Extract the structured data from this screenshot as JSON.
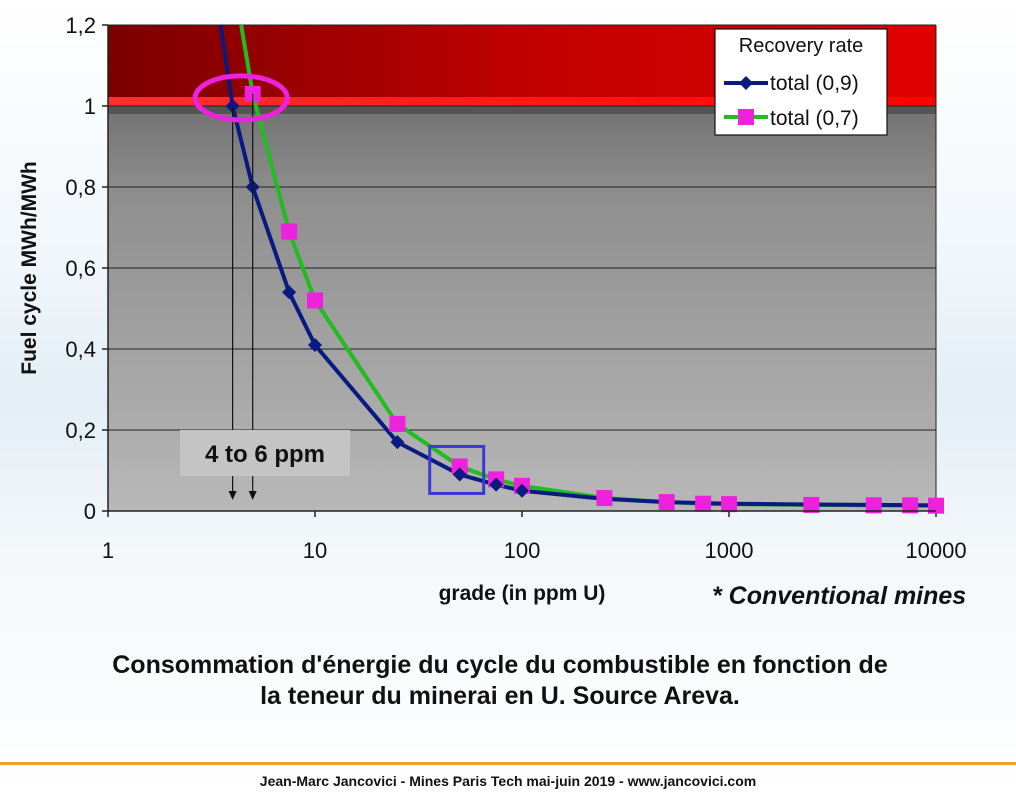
{
  "chart_data": {
    "type": "line",
    "x_scale": "log",
    "xlim": [
      1,
      10000
    ],
    "ylim": [
      0,
      1.2
    ],
    "grid": "horizontal",
    "ylabel": "Fuel cycle MWh/MWh",
    "xlabel": "grade (in ppm U)",
    "x_ticks": [
      1,
      10,
      100,
      1000,
      10000
    ],
    "x_tick_labels": [
      "1",
      "10",
      "100",
      "1000",
      "10000"
    ],
    "y_ticks": [
      0,
      0.2,
      0.4,
      0.6,
      0.8,
      1.0,
      1.2
    ],
    "y_tick_labels": [
      "0",
      "0,2",
      "0,4",
      "0,6",
      "0,8",
      "1",
      "1,2"
    ],
    "legend_title": "Recovery rate",
    "legend_position": "top-right",
    "series": [
      {
        "name": "total (0,9)",
        "color": "#0a1a80",
        "marker": "diamond",
        "x": [
          4,
          5,
          7.5,
          10,
          25,
          50,
          75,
          100
        ],
        "y": [
          1.0,
          0.8,
          0.54,
          0.41,
          0.17,
          0.09,
          0.065,
          0.05
        ],
        "line_x": [
          3.5,
          4,
          5,
          7.5,
          10,
          25,
          50,
          75,
          100,
          250,
          500,
          1000,
          2500,
          5000,
          10000
        ],
        "line_y": [
          1.2,
          1.0,
          0.8,
          0.54,
          0.41,
          0.17,
          0.09,
          0.065,
          0.05,
          0.03,
          0.022,
          0.018,
          0.016,
          0.015,
          0.014
        ]
      },
      {
        "name": "total (0,7)",
        "color": "#22bb22",
        "marker_color": "#ee22dd",
        "marker": "square",
        "x": [
          5,
          7.5,
          10,
          25,
          50,
          75,
          100,
          250,
          500,
          750,
          1000,
          2500,
          5000,
          7500,
          10000
        ],
        "y": [
          1.03,
          0.69,
          0.52,
          0.215,
          0.11,
          0.078,
          0.062,
          0.032,
          0.022,
          0.018,
          0.017,
          0.015,
          0.014,
          0.014,
          0.013
        ],
        "line_x": [
          4.4,
          5,
          7.5,
          10,
          25,
          50,
          75,
          100,
          250,
          500,
          750,
          1000,
          2500,
          5000,
          7500,
          10000
        ],
        "line_y": [
          1.2,
          1.03,
          0.69,
          0.52,
          0.215,
          0.11,
          0.078,
          0.062,
          0.032,
          0.022,
          0.018,
          0.017,
          0.015,
          0.014,
          0.014,
          0.013
        ]
      }
    ],
    "threshold_band": {
      "from": 1.0,
      "to": 1.2,
      "color": "#b00000"
    },
    "annotations": {
      "label": "4 to 6 ppm",
      "vertical_lines_x": [
        4,
        5
      ],
      "ellipse_center": [
        4.4,
        1.02
      ],
      "box_center": [
        50,
        0.11
      ]
    }
  },
  "side_note": "* Conventional mines",
  "caption": {
    "line1": "Consommation d'énergie du cycle du combustible en fonction de",
    "line2": "la teneur du minerai en U. Source Areva."
  },
  "footer": "Jean-Marc Jancovici - Mines Paris Tech mai-juin 2019 - www.jancovici.com"
}
